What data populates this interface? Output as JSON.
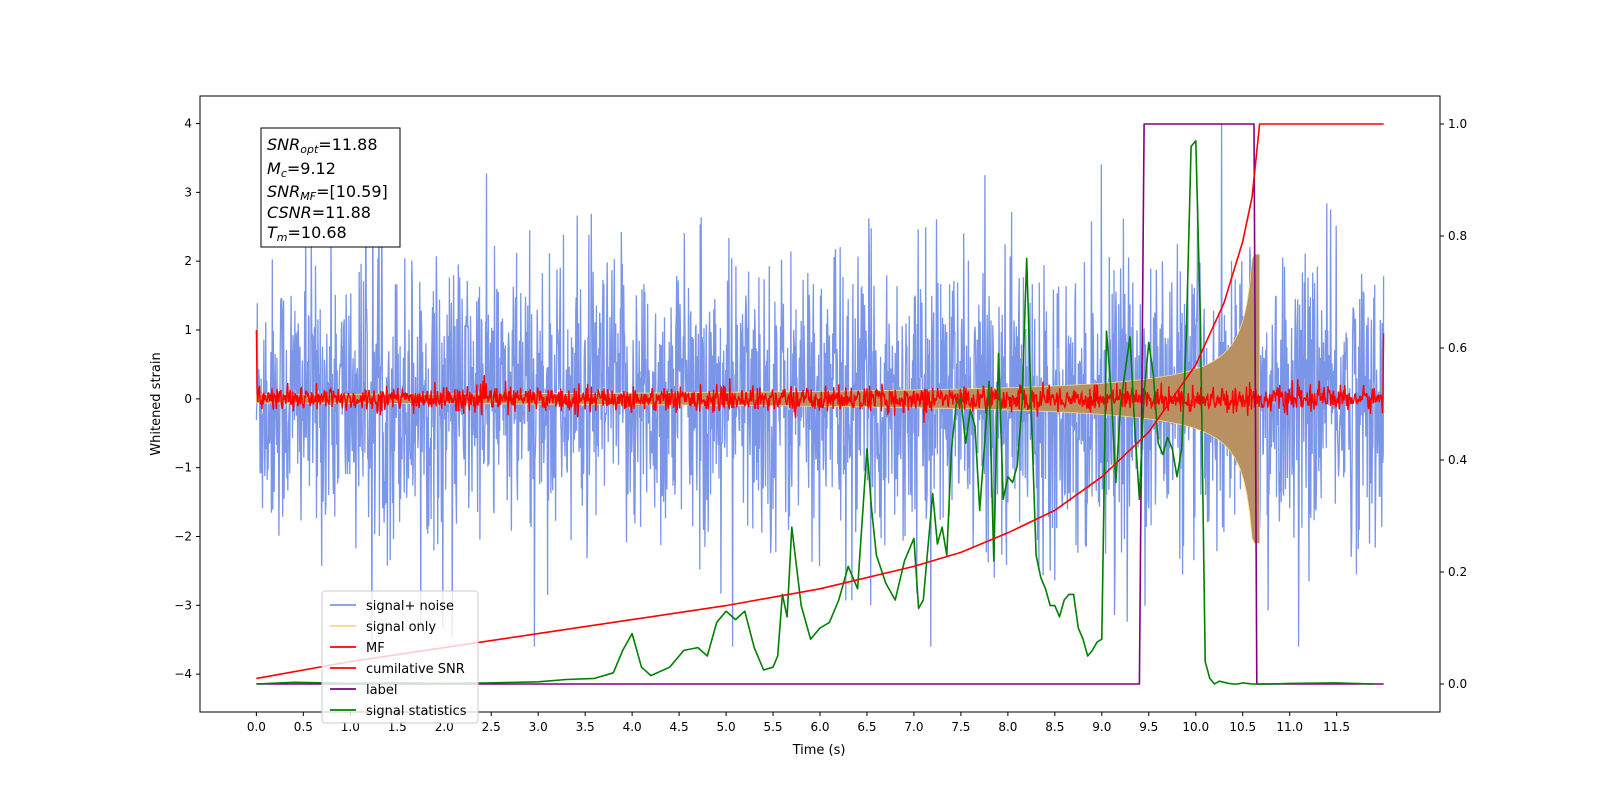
{
  "chart_data": {
    "type": "line",
    "xlabel": "Time (s)",
    "ylabel": "Whitened strain",
    "xlim": [
      -0.6,
      12.6
    ],
    "ylim": [
      -4.55,
      4.4
    ],
    "y2lim": [
      -0.05,
      1.05
    ],
    "xticks": [
      "0.0",
      "0.5",
      "1.0",
      "1.5",
      "2.0",
      "2.5",
      "3.0",
      "3.5",
      "4.0",
      "4.5",
      "5.0",
      "5.5",
      "6.0",
      "6.5",
      "7.0",
      "7.5",
      "8.0",
      "8.5",
      "9.0",
      "9.5",
      "10.0",
      "10.5",
      "11.0",
      "11.5"
    ],
    "yticks": [
      "4",
      "3",
      "2",
      "1",
      "0",
      "−1",
      "−2",
      "−3",
      "−4"
    ],
    "y2ticks": [
      "0.0",
      "0.2",
      "0.4",
      "0.6",
      "0.8",
      "1.0"
    ],
    "grid": false,
    "legend_position": "lower-left",
    "info_box": {
      "snr_opt": {
        "base": "SNR",
        "sub": "opt",
        "value": "=11.88"
      },
      "mc": {
        "base": "M",
        "sub": "c",
        "value": "=9.12"
      },
      "snr_mf": {
        "base": "SNR",
        "sub": "MF",
        "value": "=[10.59]"
      },
      "csnr": {
        "base": "CSNR",
        "sub": "",
        "value": "=11.88"
      },
      "tm": {
        "base": "T",
        "sub": "m",
        "value": "=10.68"
      }
    },
    "series": [
      {
        "name": "signal+ noise",
        "color": "#7b95e8",
        "axis": "left",
        "description_range": [
          -3.6,
          4.0
        ],
        "x_range": [
          0.0,
          12.0
        ]
      },
      {
        "name": "signal only",
        "color": "#f5d88a",
        "axis": "left",
        "x_range": [
          0.0,
          10.68
        ],
        "peak_amplitude": 2.1
      },
      {
        "name": "MF",
        "color": "#ff0000",
        "axis": "left",
        "x_range": [
          0.0,
          12.0
        ],
        "typical_amplitude": 0.15
      },
      {
        "name": "cumilative SNR",
        "color": "#ff0000",
        "axis": "right",
        "x": [
          0.0,
          1.0,
          2.0,
          3.0,
          4.0,
          5.0,
          6.0,
          7.0,
          7.5,
          8.0,
          8.5,
          9.0,
          9.5,
          10.0,
          10.3,
          10.5,
          10.6,
          10.68,
          12.0
        ],
        "values": [
          0.01,
          0.04,
          0.065,
          0.09,
          0.115,
          0.14,
          0.17,
          0.21,
          0.235,
          0.27,
          0.31,
          0.37,
          0.45,
          0.57,
          0.68,
          0.79,
          0.87,
          1.0,
          1.0
        ]
      },
      {
        "name": "label",
        "color": "#800080",
        "axis": "right",
        "x": [
          0.0,
          9.4,
          9.45,
          10.62,
          10.65,
          12.0
        ],
        "values": [
          0.0,
          0.0,
          1.0,
          1.0,
          0.0,
          0.0
        ]
      },
      {
        "name": "signal statistics",
        "color": "#008000",
        "axis": "right",
        "x": [
          0.0,
          0.4,
          1.0,
          1.5,
          2.0,
          2.5,
          3.0,
          3.3,
          3.6,
          3.8,
          3.9,
          4.0,
          4.1,
          4.2,
          4.4,
          4.55,
          4.7,
          4.8,
          4.9,
          5.0,
          5.1,
          5.2,
          5.3,
          5.4,
          5.5,
          5.55,
          5.6,
          5.65,
          5.7,
          5.8,
          5.9,
          6.0,
          6.1,
          6.2,
          6.3,
          6.4,
          6.5,
          6.55,
          6.6,
          6.7,
          6.8,
          6.9,
          7.0,
          7.05,
          7.1,
          7.2,
          7.25,
          7.3,
          7.35,
          7.4,
          7.45,
          7.5,
          7.55,
          7.6,
          7.65,
          7.7,
          7.8,
          7.85,
          7.9,
          7.95,
          8.0,
          8.05,
          8.1,
          8.15,
          8.2,
          8.25,
          8.3,
          8.35,
          8.4,
          8.45,
          8.5,
          8.55,
          8.6,
          8.65,
          8.7,
          8.75,
          8.8,
          8.85,
          8.9,
          8.95,
          9.0,
          9.05,
          9.1,
          9.15,
          9.2,
          9.3,
          9.35,
          9.4,
          9.45,
          9.5,
          9.55,
          9.6,
          9.65,
          9.7,
          9.75,
          9.8,
          9.85,
          9.9,
          9.95,
          10.0,
          10.05,
          10.1,
          10.15,
          10.2,
          10.25,
          10.3,
          10.35,
          10.4,
          10.45,
          10.5,
          10.55,
          10.6,
          10.65,
          10.7,
          10.8,
          11.0,
          11.5,
          11.9
        ],
        "values": [
          0.0,
          0.003,
          0.001,
          0.002,
          0.001,
          0.002,
          0.004,
          0.008,
          0.01,
          0.02,
          0.06,
          0.09,
          0.03,
          0.015,
          0.03,
          0.06,
          0.065,
          0.05,
          0.11,
          0.13,
          0.115,
          0.13,
          0.065,
          0.025,
          0.03,
          0.05,
          0.16,
          0.12,
          0.28,
          0.14,
          0.08,
          0.1,
          0.11,
          0.15,
          0.21,
          0.17,
          0.42,
          0.31,
          0.23,
          0.18,
          0.15,
          0.22,
          0.26,
          0.135,
          0.15,
          0.34,
          0.25,
          0.28,
          0.23,
          0.42,
          0.5,
          0.51,
          0.43,
          0.49,
          0.46,
          0.31,
          0.54,
          0.22,
          0.59,
          0.33,
          0.37,
          0.36,
          0.39,
          0.5,
          0.76,
          0.48,
          0.23,
          0.19,
          0.17,
          0.14,
          0.14,
          0.12,
          0.15,
          0.16,
          0.16,
          0.1,
          0.08,
          0.05,
          0.06,
          0.075,
          0.08,
          0.63,
          0.52,
          0.36,
          0.5,
          0.62,
          0.46,
          0.33,
          0.52,
          0.61,
          0.55,
          0.43,
          0.41,
          0.44,
          0.42,
          0.37,
          0.42,
          0.63,
          0.96,
          0.97,
          0.64,
          0.04,
          0.01,
          0.0,
          0.005,
          0.003,
          0.001,
          0.0,
          0.0,
          0.002,
          0.001,
          0.0,
          0.0,
          0.0,
          0.0,
          0.001,
          0.002,
          0.0
        ]
      }
    ]
  }
}
